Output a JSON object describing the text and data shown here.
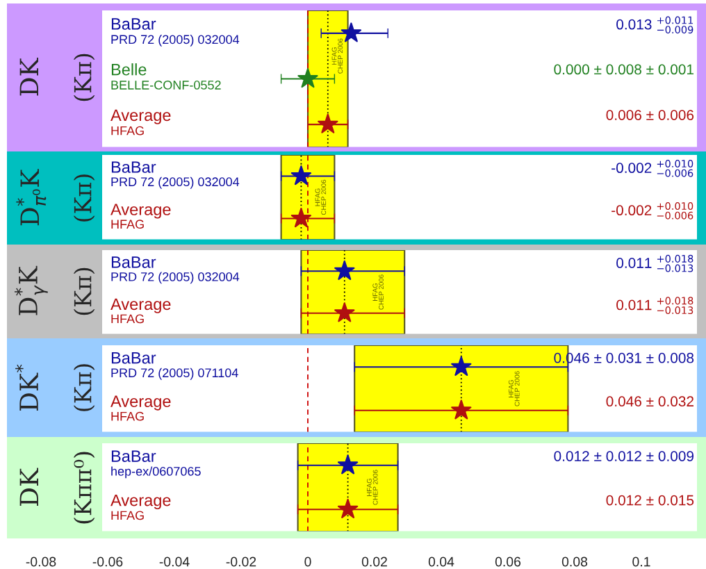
{
  "chart_data": [
    {
      "type": "scatter",
      "orientation": "horizontal",
      "title": "DK",
      "subtitle": "(Kπ)",
      "marker": "star",
      "tick_labels": "y",
      "xlim": [
        -0.085,
        0.117
      ],
      "xticks": [
        -0.08,
        -0.06,
        -0.04,
        -0.02,
        0,
        0.02,
        0.04,
        0.06,
        0.08,
        0.1
      ],
      "categories": [
        "BaBar\nPRD 72 (2005) 032004",
        "Belle\nBELLE-CONF-0552",
        "Average\nHFAG"
      ],
      "values": [
        0.013,
        0.0,
        0.006
      ],
      "colors": [
        "#1010a0",
        "#208020",
        "#b01010"
      ],
      "errors": [
        [
          0.004,
          0.024
        ],
        0.008,
        0.006
      ],
      "annotations": [
        "0.013 $^{+0.011}$$_{−0.009}$",
        "0.000 ± 0.008 ± 0.001",
        "0.006 ± 0.006"
      ],
      "bands": [
        {
          "axis": "x",
          "from": 0.0,
          "to": 0.012,
          "label": "HFAG\nCHEP 2006",
          "color": "#ffff00"
        }
      ],
      "ref_lines": [
        {
          "axis": "x",
          "value": 0,
          "color": "#cc0000",
          "line_style": "dashed"
        },
        {
          "axis": "x",
          "value": 0.006,
          "color": "#000000",
          "line_style": "dotted"
        }
      ]
    },
    {
      "type": "scatter",
      "orientation": "horizontal",
      "title": "D$^{*}$$_{π⁰}$K",
      "subtitle": "(Kπ)",
      "marker": "star",
      "tick_labels": "y",
      "xlim": [
        -0.085,
        0.117
      ],
      "xticks": [
        -0.08,
        -0.06,
        -0.04,
        -0.02,
        0,
        0.02,
        0.04,
        0.06,
        0.08,
        0.1
      ],
      "categories": [
        "BaBar\nPRD 72 (2005) 032004",
        "Average\nHFAG"
      ],
      "values": [
        -0.002,
        -0.002
      ],
      "colors": [
        "#1010a0",
        "#b01010"
      ],
      "errors": [
        [
          -0.008,
          0.008
        ],
        [
          -0.008,
          0.008
        ]
      ],
      "annotations": [
        "-0.002 $^{+0.010}$$_{−0.006}$",
        "-0.002 $^{+0.010}$$_{−0.006}$"
      ],
      "bands": [
        {
          "axis": "x",
          "from": -0.008,
          "to": 0.008,
          "label": "HFAG\nCHEP 2006",
          "color": "#ffff00"
        }
      ],
      "ref_lines": [
        {
          "axis": "x",
          "value": 0,
          "color": "#cc0000",
          "line_style": "dashed"
        },
        {
          "axis": "x",
          "value": -0.002,
          "color": "#000000",
          "line_style": "dotted"
        }
      ]
    },
    {
      "type": "scatter",
      "orientation": "horizontal",
      "title": "D$^{*}$$_{γ}$K",
      "subtitle": "(Kπ)",
      "marker": "star",
      "tick_labels": "y",
      "xlim": [
        -0.085,
        0.117
      ],
      "xticks": [
        -0.08,
        -0.06,
        -0.04,
        -0.02,
        0,
        0.02,
        0.04,
        0.06,
        0.08,
        0.1
      ],
      "categories": [
        "BaBar\nPRD 72 (2005) 032004",
        "Average\nHFAG"
      ],
      "values": [
        0.011,
        0.011
      ],
      "colors": [
        "#1010a0",
        "#b01010"
      ],
      "errors": [
        [
          -0.002,
          0.029
        ],
        [
          -0.002,
          0.029
        ]
      ],
      "annotations": [
        "0.011 $^{+0.018}$$_{−0.013}$",
        "0.011 $^{+0.018}$$_{−0.013}$"
      ],
      "bands": [
        {
          "axis": "x",
          "from": -0.002,
          "to": 0.029,
          "label": "HFAG\nCHEP 2006",
          "color": "#ffff00"
        }
      ],
      "ref_lines": [
        {
          "axis": "x",
          "value": 0,
          "color": "#cc0000",
          "line_style": "dashed"
        },
        {
          "axis": "x",
          "value": 0.011,
          "color": "#000000",
          "line_style": "dotted"
        }
      ]
    },
    {
      "type": "scatter",
      "orientation": "horizontal",
      "title": "DK$^{*}$",
      "subtitle": "(Kπ)",
      "marker": "star",
      "tick_labels": "y",
      "xlim": [
        -0.085,
        0.117
      ],
      "xticks": [
        -0.08,
        -0.06,
        -0.04,
        -0.02,
        0,
        0.02,
        0.04,
        0.06,
        0.08,
        0.1
      ],
      "categories": [
        "BaBar\nPRD 72 (2005) 071104",
        "Average\nHFAG"
      ],
      "values": [
        0.046,
        0.046
      ],
      "colors": [
        "#1010a0",
        "#b01010"
      ],
      "errors": [
        0.032,
        0.032
      ],
      "annotations": [
        "0.046 ± 0.031 ± 0.008",
        "0.046 ± 0.032"
      ],
      "bands": [
        {
          "axis": "x",
          "from": 0.014,
          "to": 0.078,
          "label": "HFAG\nCHEP 2006",
          "color": "#ffff00"
        }
      ],
      "ref_lines": [
        {
          "axis": "x",
          "value": 0,
          "color": "#cc0000",
          "line_style": "dashed"
        },
        {
          "axis": "x",
          "value": 0.046,
          "color": "#000000",
          "line_style": "dotted"
        }
      ]
    },
    {
      "type": "scatter",
      "orientation": "horizontal",
      "title": "DK",
      "subtitle": "(Kππ⁰)",
      "marker": "star",
      "xlim": [
        -0.085,
        0.117
      ],
      "xticks": [
        -0.08,
        -0.06,
        -0.04,
        -0.02,
        0,
        0.02,
        0.04,
        0.06,
        0.08,
        0.1
      ],
      "categories": [
        "BaBar\nhep-ex/0607065",
        "Average\nHFAG"
      ],
      "values": [
        0.012,
        0.012
      ],
      "colors": [
        "#1010a0",
        "#b01010"
      ],
      "errors": [
        0.015,
        0.015
      ],
      "annotations": [
        "0.012 ± 0.012 ± 0.009",
        "0.012 ± 0.015"
      ],
      "bands": [
        {
          "axis": "x",
          "from": -0.003,
          "to": 0.027,
          "label": "HFAG\nCHEP 2006",
          "color": "#ffff00"
        }
      ],
      "ref_lines": [
        {
          "axis": "x",
          "value": 0,
          "color": "#cc0000",
          "line_style": "dashed"
        },
        {
          "axis": "x",
          "value": 0.012,
          "color": "#000000",
          "line_style": "dotted"
        }
      ]
    }
  ]
}
